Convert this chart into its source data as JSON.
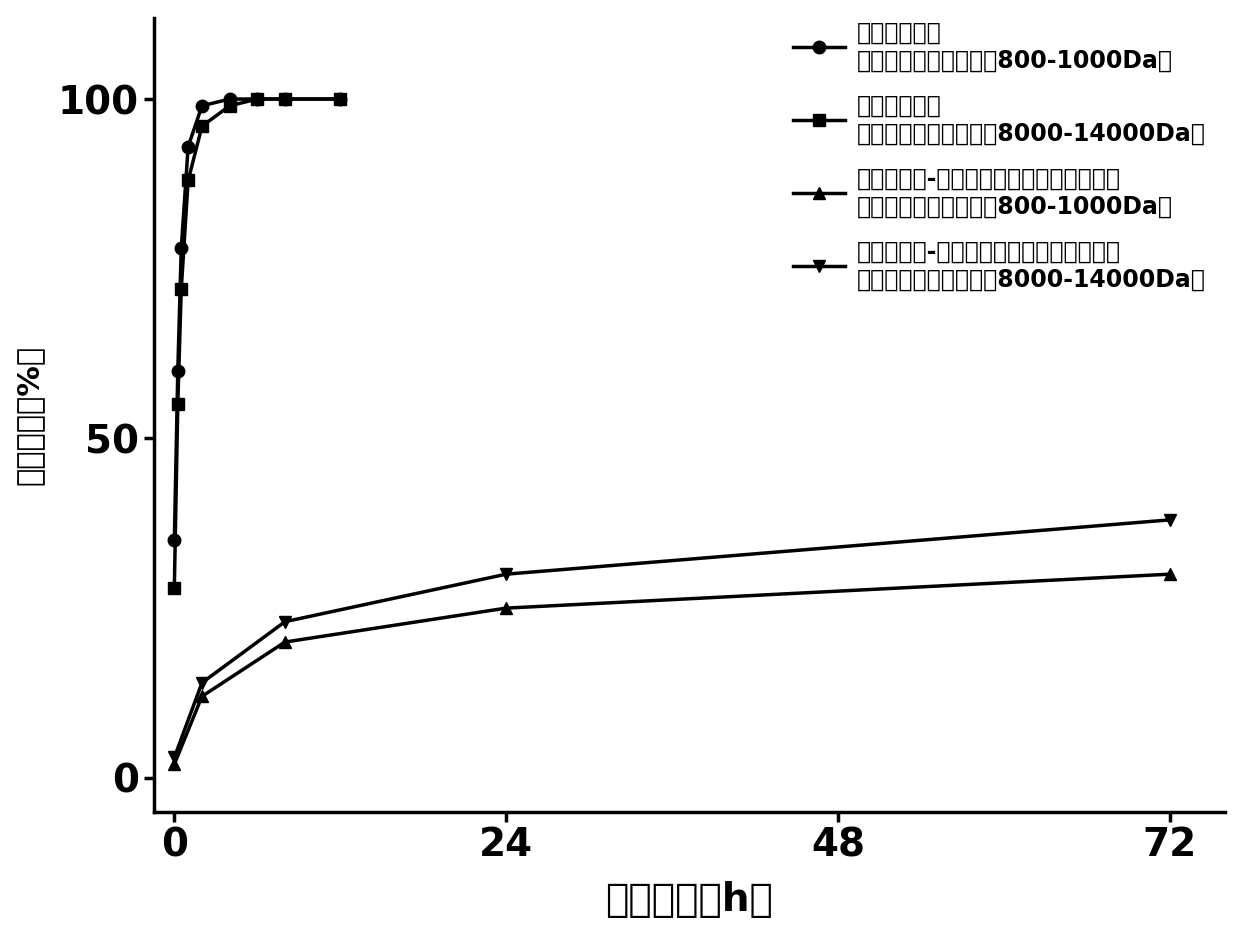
{
  "series": [
    {
      "label_line1": "阿霉素溶液组",
      "label_line2": "（透析袋截留分子量为800-1000Da）",
      "x": [
        0,
        0.25,
        0.5,
        1,
        2,
        4,
        6,
        8,
        12
      ],
      "y": [
        35,
        60,
        78,
        93,
        99,
        100,
        100,
        100,
        100
      ],
      "marker": "o",
      "markersize": 9,
      "linewidth": 2.5
    },
    {
      "label_line1": "阿霉素溶液组",
      "label_line2": "（透析袋截流分子量为8000-14000Da）",
      "x": [
        0,
        0.25,
        0.5,
        1,
        2,
        4,
        6,
        8,
        12
      ],
      "y": [
        28,
        55,
        72,
        88,
        96,
        99,
        100,
        100,
        100
      ],
      "marker": "s",
      "markersize": 9,
      "linewidth": 2.5
    },
    {
      "label_line1": "低分子肝素-阿霉素静电复合物载药系统组",
      "label_line2": "（透析袋截流分子量为800-1000Da）",
      "x": [
        0,
        2,
        8,
        24,
        72
      ],
      "y": [
        2,
        12,
        20,
        25,
        30
      ],
      "marker": "^",
      "markersize": 9,
      "linewidth": 2.5
    },
    {
      "label_line1": "低分子肝素-阿霉素静电复合物载药系统组",
      "label_line2": "（透析袋截流分子量为8000-14000Da）",
      "x": [
        0,
        2,
        8,
        24,
        72
      ],
      "y": [
        3,
        14,
        23,
        30,
        38
      ],
      "marker": "v",
      "markersize": 9,
      "linewidth": 2.5
    }
  ],
  "xlabel": "预定时间（h）",
  "ylabel": "释放速率（%）",
  "xlim": [
    -1.5,
    76
  ],
  "ylim": [
    -5,
    112
  ],
  "xticks": [
    0,
    24,
    48,
    72
  ],
  "yticks": [
    0,
    50,
    100
  ],
  "color": "#000000",
  "background_color": "#ffffff",
  "xlabel_fontsize": 28,
  "ylabel_fontsize": 22,
  "tick_fontsize": 28,
  "legend_fontsize": 17,
  "linewidth": 2.5
}
